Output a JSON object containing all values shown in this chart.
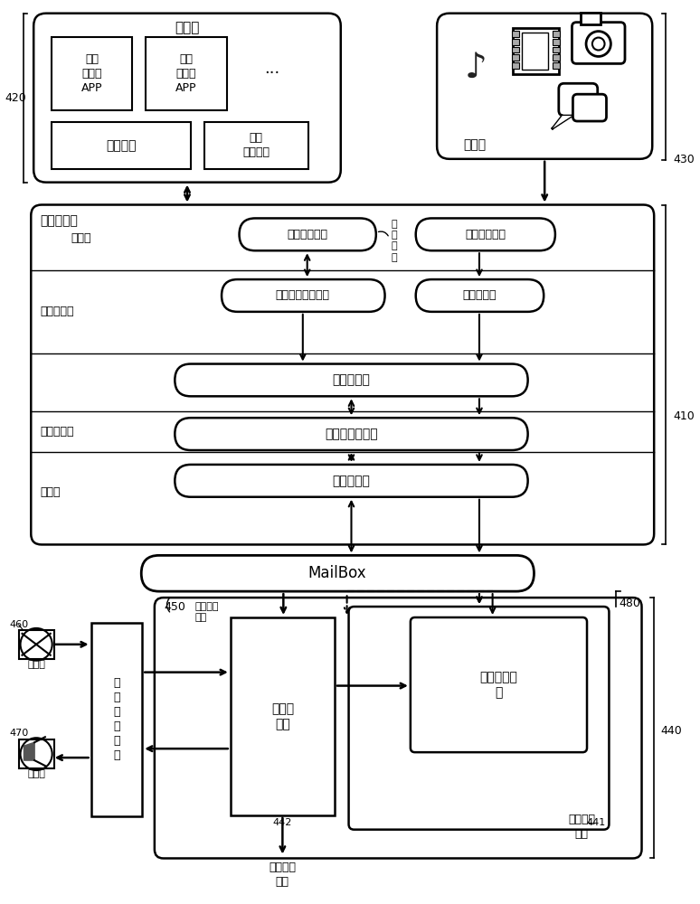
{
  "bg": "#ffffff",
  "lc": "#000000",
  "fw": 7.74,
  "fh": 10.0,
  "font_cn": "SimHei",
  "texts": {
    "storage": "存储器",
    "audio_app": "音频\n播放器\nAPP",
    "video_app": "视频\n播放器\nAPP",
    "ellipsis": "···",
    "os": "操作系统",
    "local_audio": "本地\n音频文件",
    "touchscreen": "触摸屏",
    "app_proc": "应用处理器",
    "app_layer": "应用层",
    "fw_layer": "应用框架层",
    "hal_layer": "硬件抄象层",
    "kernel_layer": "核心层",
    "digital_mix_if": "数字混音接口",
    "media_if": "媒体播放接口",
    "audio_src_mgr": "音频来源管理接口",
    "track_src": "音轨源节点",
    "audio_ctrl": "音频调控器",
    "audio_hal": "音频硬件抄象层",
    "hw_driver": "硬件驱动层",
    "mailbox": "MailBox",
    "preproc": "预处理\n模块",
    "digital_mix": "数字混音模\n块",
    "codec": "音\n频\n编\n解\n码\n器",
    "mic": "麦克风",
    "speaker": "扬声器",
    "sound_proc": "声音处理\n模块",
    "mix_sig": "混音音频\n信号",
    "ctrl_sig": "控\n制\n信\n号",
    "n420": "420",
    "n430": "430",
    "n410": "410",
    "n450": "450",
    "n460": "460",
    "n470": "470",
    "n480": "480",
    "n440": "440",
    "n441": "441",
    "n442": "442"
  }
}
